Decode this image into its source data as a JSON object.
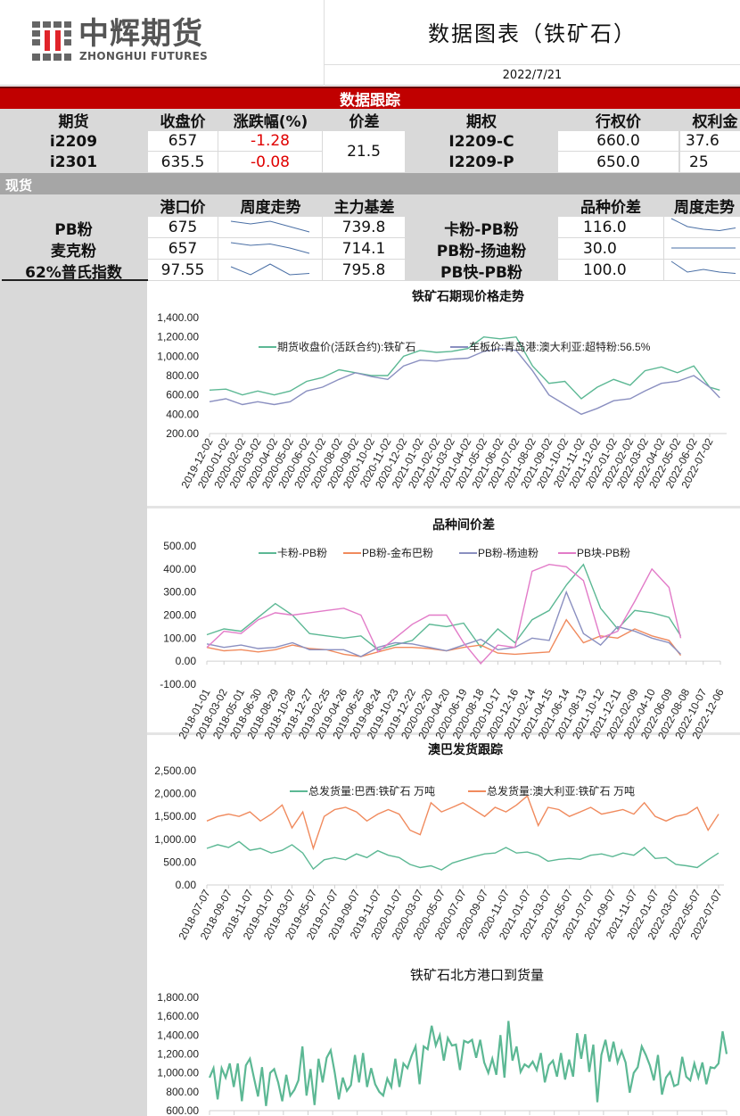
{
  "header": {
    "logo_cn": "中辉期货",
    "logo_en": "ZHONGHUI FUTURES",
    "title": "数据图表（铁矿石）",
    "date": "2022/7/21"
  },
  "tracking": {
    "banner": "数据跟踪",
    "futures_headers": [
      "期货",
      "收盘价",
      "涨跌幅(%)",
      "价差",
      "期权",
      "行权价",
      "权利金"
    ],
    "futures": [
      {
        "contract": "i2209",
        "close": "657",
        "change": "-1.28",
        "option": "I2209-C",
        "strike": "660.0",
        "premium": "37.6"
      },
      {
        "contract": "i2301",
        "close": "635.5",
        "change": "-0.08",
        "option": "I2209-P",
        "strike": "650.0",
        "premium": "25"
      }
    ],
    "spread": "21.5"
  },
  "spot": {
    "banner": "现货",
    "headers": [
      "港口价",
      "周度走势",
      "主力基差",
      "品种价差",
      "周度走势"
    ],
    "rows": [
      {
        "name": "PB粉",
        "price": "675",
        "trend": [
          5,
          4,
          5,
          3,
          1
        ],
        "basis": "739.8",
        "pair": "卡粉-PB粉",
        "pair_spread": "116.0",
        "pair_trend": [
          6,
          3,
          2,
          1.5,
          2.5
        ]
      },
      {
        "name": "麦克粉",
        "price": "657",
        "trend": [
          5,
          4,
          4.5,
          3,
          1
        ],
        "basis": "714.1",
        "pair": "PB粉-扬迪粉",
        "pair_spread": "30.0",
        "pair_trend": [
          3,
          3,
          3,
          3,
          3
        ]
      },
      {
        "name": "62%普氏指数",
        "price": "97.55",
        "trend": [
          4,
          1,
          5,
          1,
          1.5
        ],
        "basis": "795.8",
        "pair": "PB快-PB粉",
        "pair_spread": "100.0",
        "pair_trend": [
          6,
          2,
          3,
          2,
          1.5
        ]
      }
    ],
    "trend_color": "#4a6fa5"
  },
  "chart_data": [
    {
      "type": "line",
      "title": "铁矿石期现价格走势",
      "ylim": [
        200,
        1400
      ],
      "yticks": [
        "200.00",
        "400.00",
        "600.00",
        "800.00",
        "1,000.00",
        "1,200.00",
        "1,400.00"
      ],
      "xticks": [
        "2019-12-02",
        "2020-01-02",
        "2020-02-02",
        "2020-03-02",
        "2020-04-02",
        "2020-05-02",
        "2020-06-02",
        "2020-07-02",
        "2020-08-02",
        "2020-09-02",
        "2020-10-02",
        "2020-11-02",
        "2020-12-02",
        "2021-01-02",
        "2021-02-02",
        "2021-03-02",
        "2021-04-02",
        "2021-05-02",
        "2021-06-02",
        "2021-07-02",
        "2021-08-02",
        "2021-09-02",
        "2021-10-02",
        "2021-11-02",
        "2021-12-02",
        "2022-01-02",
        "2022-02-02",
        "2022-03-02",
        "2022-04-02",
        "2022-05-02",
        "2022-06-02",
        "2022-07-02"
      ],
      "x": [
        "2019-12-02",
        "2020-01-02",
        "2020-02-02",
        "2020-03-02",
        "2020-04-02",
        "2020-05-02",
        "2020-06-02",
        "2020-07-02",
        "2020-08-02",
        "2020-09-02",
        "2020-10-02",
        "2020-11-02",
        "2020-12-02",
        "2021-01-02",
        "2021-02-02",
        "2021-03-02",
        "2021-04-02",
        "2021-05-02",
        "2021-06-02",
        "2021-07-02",
        "2021-08-02",
        "2021-09-02",
        "2021-10-02",
        "2021-11-02",
        "2021-12-02",
        "2022-01-02",
        "2022-02-02",
        "2022-03-02",
        "2022-04-02",
        "2022-05-02",
        "2022-06-02",
        "2022-07-02",
        "2022-07-21"
      ],
      "series": [
        {
          "name": "期货收盘价(活跃合约):铁矿石",
          "color": "#5cb894",
          "values": [
            650,
            660,
            600,
            640,
            600,
            640,
            740,
            780,
            860,
            830,
            800,
            800,
            1000,
            1060,
            1040,
            1050,
            1080,
            1200,
            1180,
            1200,
            900,
            720,
            740,
            560,
            680,
            760,
            700,
            850,
            890,
            830,
            900,
            680,
            650
          ]
        },
        {
          "name": "车板价:青岛港:澳大利亚:超特粉:56.5%",
          "color": "#8a8fc0",
          "values": [
            530,
            560,
            500,
            530,
            500,
            530,
            640,
            680,
            760,
            830,
            790,
            760,
            900,
            960,
            950,
            970,
            980,
            1050,
            1080,
            1060,
            850,
            600,
            500,
            400,
            460,
            540,
            560,
            640,
            720,
            740,
            800,
            680,
            570
          ]
        }
      ],
      "legend": "top",
      "grid": false
    },
    {
      "type": "line",
      "title": "品种间价差",
      "ylim": [
        -100,
        500
      ],
      "yticks": [
        "-100.00",
        "0.00",
        "100.00",
        "200.00",
        "300.00",
        "400.00",
        "500.00"
      ],
      "xticks": [
        "2018-01-01",
        "2018-03-02",
        "2018-05-01",
        "2018-06-30",
        "2018-08-29",
        "2018-10-28",
        "2018-12-27",
        "2019-02-25",
        "2019-04-26",
        "2019-06-25",
        "2019-08-24",
        "2019-10-23",
        "2019-12-22",
        "2020-02-20",
        "2020-04-20",
        "2020-06-19",
        "2020-08-18",
        "2020-10-17",
        "2020-12-16",
        "2021-02-14",
        "2021-04-15",
        "2021-06-14",
        "2021-08-13",
        "2021-10-12",
        "2021-12-11",
        "2022-02-09",
        "2022-04-10",
        "2022-06-09",
        "2022-08-08",
        "2022-10-07",
        "2022-12-06"
      ],
      "x": [
        "2018-01-01",
        "2018-03-02",
        "2018-05-01",
        "2018-06-30",
        "2018-08-29",
        "2018-10-28",
        "2018-12-27",
        "2019-02-25",
        "2019-04-26",
        "2019-06-25",
        "2019-08-24",
        "2019-10-23",
        "2019-12-22",
        "2020-02-20",
        "2020-04-20",
        "2020-06-19",
        "2020-08-18",
        "2020-10-17",
        "2020-12-16",
        "2021-02-14",
        "2021-04-15",
        "2021-06-14",
        "2021-08-13",
        "2021-10-12",
        "2021-12-11",
        "2022-02-09",
        "2022-04-10",
        "2022-06-09",
        "2022-07-20"
      ],
      "series": [
        {
          "name": "卡粉-PB粉",
          "color": "#5cb894",
          "values": [
            115,
            140,
            130,
            190,
            250,
            200,
            120,
            110,
            100,
            110,
            50,
            70,
            90,
            160,
            150,
            165,
            60,
            140,
            80,
            180,
            220,
            330,
            420,
            230,
            140,
            220,
            210,
            190,
            110
          ]
        },
        {
          "name": "PB粉-金布巴粉",
          "color": "#f08a5d",
          "values": [
            60,
            45,
            50,
            40,
            50,
            70,
            55,
            50,
            30,
            20,
            40,
            60,
            60,
            55,
            45,
            60,
            70,
            35,
            30,
            35,
            40,
            180,
            80,
            110,
            100,
            140,
            110,
            90,
            25
          ]
        },
        {
          "name": "PB粉-杨迪粉",
          "color": "#8a8fc0",
          "values": [
            75,
            60,
            70,
            55,
            60,
            80,
            50,
            50,
            50,
            20,
            60,
            80,
            75,
            60,
            45,
            70,
            95,
            50,
            60,
            100,
            90,
            300,
            120,
            70,
            150,
            130,
            100,
            80,
            30
          ]
        },
        {
          "name": "PB块-PB粉",
          "color": "#e27bc8",
          "values": [
            60,
            130,
            120,
            180,
            210,
            200,
            210,
            220,
            230,
            200,
            40,
            100,
            160,
            200,
            200,
            80,
            -10,
            70,
            60,
            390,
            420,
            410,
            350,
            100,
            130,
            260,
            400,
            320,
            100
          ]
        }
      ],
      "legend": "top",
      "grid": false
    },
    {
      "type": "line",
      "title": "澳巴发货跟踪",
      "ylim": [
        0,
        2500
      ],
      "yticks": [
        "0.00",
        "500.00",
        "1,000.00",
        "1,500.00",
        "2,000.00",
        "2,500.00"
      ],
      "xticks": [
        "2018-07-07",
        "2018-09-07",
        "2018-11-07",
        "2019-01-07",
        "2019-03-07",
        "2019-05-07",
        "2019-07-07",
        "2019-09-07",
        "2019-11-07",
        "2020-01-07",
        "2020-03-07",
        "2020-05-07",
        "2020-07-07",
        "2020-09-07",
        "2020-11-07",
        "2021-01-07",
        "2021-03-07",
        "2021-05-07",
        "2021-07-07",
        "2021-09-07",
        "2021-11-07",
        "2022-01-07",
        "2022-03-07",
        "2022-05-07",
        "2022-07-07"
      ],
      "x": [
        "2018-07-07",
        "2018-08-07",
        "2018-09-07",
        "2018-10-07",
        "2018-11-07",
        "2018-12-07",
        "2019-01-07",
        "2019-02-07",
        "2019-03-07",
        "2019-04-07",
        "2019-05-07",
        "2019-06-07",
        "2019-07-07",
        "2019-08-07",
        "2019-09-07",
        "2019-10-07",
        "2019-11-07",
        "2019-12-07",
        "2020-01-07",
        "2020-02-07",
        "2020-03-07",
        "2020-04-07",
        "2020-05-07",
        "2020-06-07",
        "2020-07-07",
        "2020-08-07",
        "2020-09-07",
        "2020-10-07",
        "2020-11-07",
        "2020-12-07",
        "2021-01-07",
        "2021-02-07",
        "2021-03-07",
        "2021-04-07",
        "2021-05-07",
        "2021-06-07",
        "2021-07-07",
        "2021-08-07",
        "2021-09-07",
        "2021-10-07",
        "2021-11-07",
        "2021-12-07",
        "2022-01-07",
        "2022-02-07",
        "2022-03-07",
        "2022-04-07",
        "2022-05-07",
        "2022-06-07",
        "2022-07-07"
      ],
      "series": [
        {
          "name": "总发货量:巴西:铁矿石 万吨",
          "color": "#5cb894",
          "values": [
            800,
            880,
            820,
            950,
            760,
            800,
            700,
            760,
            880,
            700,
            350,
            550,
            600,
            550,
            680,
            600,
            750,
            650,
            600,
            450,
            380,
            420,
            330,
            480,
            550,
            620,
            680,
            700,
            820,
            700,
            720,
            650,
            520,
            560,
            580,
            560,
            650,
            680,
            620,
            700,
            650,
            820,
            580,
            600,
            450,
            420,
            380,
            550,
            700
          ]
        },
        {
          "name": "总发货量:澳大利亚:铁矿石 万吨",
          "color": "#f08a5d",
          "values": [
            1400,
            1500,
            1550,
            1500,
            1600,
            1400,
            1550,
            1750,
            1250,
            1600,
            800,
            1500,
            1650,
            1700,
            1600,
            1400,
            1550,
            1650,
            1550,
            1200,
            1100,
            1800,
            1600,
            1700,
            1800,
            1650,
            1500,
            1700,
            1600,
            1750,
            1950,
            1300,
            1700,
            1650,
            1500,
            1600,
            1700,
            1550,
            1600,
            1650,
            1550,
            1800,
            1500,
            1400,
            1500,
            1550,
            1700,
            1200,
            1550
          ]
        }
      ],
      "legend": "top",
      "grid": false
    },
    {
      "type": "line",
      "title": "铁矿石北方港口到货量",
      "ylim": [
        600,
        1800
      ],
      "yticks": [
        "600.00",
        "800.00",
        "1,000.00",
        "1,200.00",
        "1,400.00",
        "1,600.00",
        "1,800.00"
      ],
      "series": [
        {
          "color": "#5cb894",
          "values": [
            950,
            1050,
            720,
            1050,
            950,
            1100,
            850,
            1100,
            700,
            1080,
            1150,
            950,
            750,
            1060,
            650,
            1000,
            1040,
            900,
            700,
            980,
            760,
            820,
            920,
            1280,
            760,
            1040,
            660,
            1150,
            900,
            1160,
            1240,
            1000,
            720,
            950,
            810,
            870,
            1190,
            900,
            1210,
            850,
            1050,
            880,
            800,
            760,
            940,
            850,
            1150,
            850,
            1100,
            1050,
            1180,
            1280,
            880,
            1280,
            1250,
            1500,
            1290,
            1400,
            1130,
            1370,
            1290,
            1300,
            1030,
            1340,
            1320,
            1350,
            1160,
            1350,
            1110,
            1000,
            1150,
            980,
            1400,
            950,
            1550,
            1130,
            1280,
            1010,
            1090,
            1060,
            1120,
            1030,
            1210,
            900,
            1080,
            1130,
            960,
            1210,
            930,
            1140,
            960,
            1420,
            1150,
            1410,
            1010,
            1300,
            690,
            1190,
            1350,
            1120,
            1330,
            1110,
            1230,
            1110,
            790,
            1000,
            1060,
            1280,
            1190,
            1080,
            920,
            1190,
            770,
            950,
            1010,
            860,
            880,
            1170,
            960,
            920,
            1100,
            950,
            1110,
            880,
            1060,
            1050,
            1100,
            1440,
            1200
          ]
        }
      ],
      "legend": "none",
      "grid": false
    }
  ]
}
